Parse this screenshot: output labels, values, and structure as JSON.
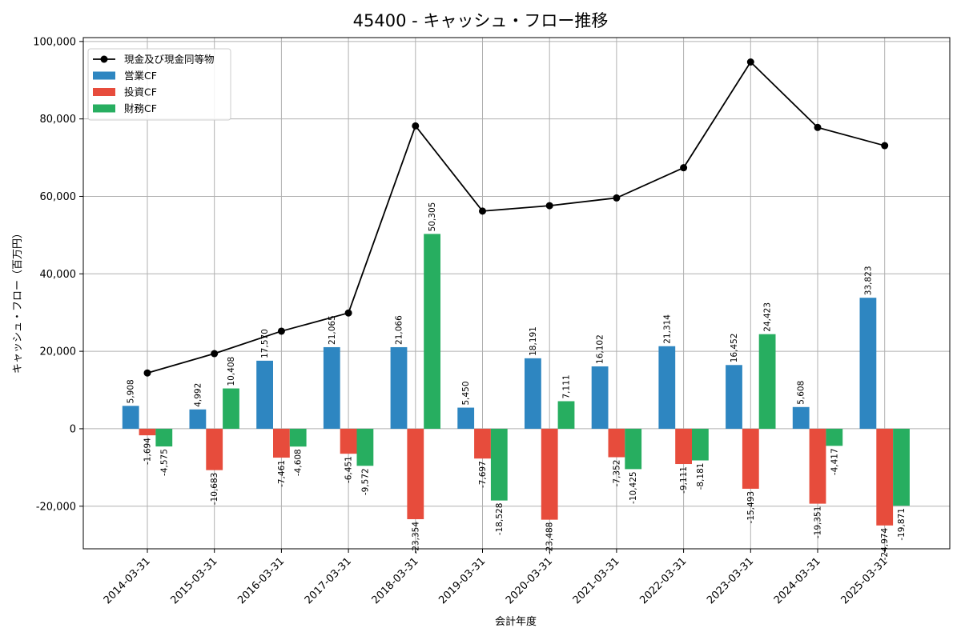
{
  "chart_data": {
    "type": "bar",
    "title": "45400 - キャッシュ・フロー推移",
    "xlabel": "会計年度",
    "ylabel": "キャッシュ・フロー（百万円）",
    "ylim": [
      -31000,
      101000
    ],
    "yticks": [
      -20000,
      0,
      20000,
      40000,
      60000,
      80000,
      100000
    ],
    "ytick_labels": [
      "-20,000",
      "0",
      "20,000",
      "40,000",
      "60,000",
      "80,000",
      "100,000"
    ],
    "grid": true,
    "legend_position": "top-left",
    "categories": [
      "2014-03-31",
      "2015-03-31",
      "2016-03-31",
      "2017-03-31",
      "2018-03-31",
      "2019-03-31",
      "2020-03-31",
      "2021-03-31",
      "2022-03-31",
      "2023-03-31",
      "2024-03-31",
      "2025-03-31"
    ],
    "series": [
      {
        "name": "営業CF",
        "kind": "bar",
        "color": "#2e86c1",
        "values": [
          5908,
          4992,
          17570,
          21065,
          21066,
          5450,
          18191,
          16102,
          21314,
          16452,
          5608,
          33823
        ],
        "labels": [
          "5,908",
          "4,992",
          "17,570",
          "21,065",
          "21,066",
          "5,450",
          "18,191",
          "16,102",
          "21,314",
          "16,452",
          "5,608",
          "33,823"
        ]
      },
      {
        "name": "投資CF",
        "kind": "bar",
        "color": "#e74c3c",
        "values": [
          -1694,
          -10683,
          -7461,
          -6451,
          -23354,
          -7697,
          -23488,
          -7352,
          -9111,
          -15493,
          -19351,
          -24974
        ],
        "labels": [
          "-1,694",
          "-10,683",
          "-7,461",
          "-6,451",
          "-23,354",
          "-7,697",
          "-23,488",
          "-7,352",
          "-9,111",
          "-15,493",
          "-19,351",
          "-24,974"
        ]
      },
      {
        "name": "財務CF",
        "kind": "bar",
        "color": "#27ae60",
        "values": [
          -4575,
          10408,
          -4608,
          -9572,
          50305,
          -18528,
          7111,
          -10425,
          -8181,
          24423,
          -4417,
          -19871
        ],
        "labels": [
          "-4,575",
          "10,408",
          "-4,608",
          "-9,572",
          "50,305",
          "-18,528",
          "7,111",
          "-10,425",
          "-8,181",
          "24,423",
          "-4,417",
          "-19,871"
        ]
      },
      {
        "name": "現金及び現金同等物",
        "kind": "line",
        "color": "#000000",
        "values": [
          14400,
          19400,
          25200,
          29900,
          78200,
          56200,
          57600,
          59600,
          67400,
          94700,
          77800,
          73100
        ]
      }
    ]
  }
}
